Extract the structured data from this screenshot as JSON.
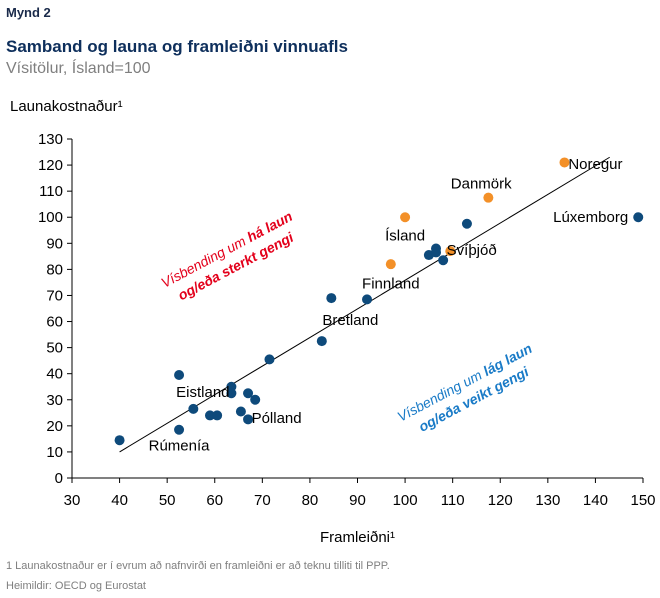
{
  "figure_label": "Mynd 2",
  "title": "Samband og launa og framleiðni vinnuafls",
  "subtitle": "Vísitölur, Ísland=100",
  "footnote": "1 Launakostnaður er í evrum að nafnvirði en framleiðni er að teknu tilliti til PPP.",
  "source": "Heimildir: OECD og Eurostat",
  "colors": {
    "navy": "#0e4a7b",
    "orange": "#f39028",
    "red": "#e3001b",
    "blue": "#1a7bc7"
  },
  "chart_data": {
    "type": "scatter",
    "xlabel": "Framleiðni¹",
    "ylabel": "Launakostnaður¹",
    "xlim": [
      30,
      150
    ],
    "ylim": [
      0,
      130
    ],
    "xticks": [
      30,
      40,
      50,
      60,
      70,
      80,
      90,
      100,
      110,
      120,
      130,
      140,
      150
    ],
    "yticks": [
      0,
      10,
      20,
      30,
      40,
      50,
      60,
      70,
      80,
      90,
      100,
      110,
      120,
      130
    ],
    "grid": false,
    "points": [
      {
        "x": 40,
        "y": 14.5,
        "color": "navy"
      },
      {
        "x": 52.5,
        "y": 18.5,
        "color": "navy"
      },
      {
        "x": 55.5,
        "y": 26.5,
        "color": "navy"
      },
      {
        "x": 52.5,
        "y": 39.5,
        "color": "navy"
      },
      {
        "x": 59,
        "y": 24,
        "color": "navy"
      },
      {
        "x": 60.5,
        "y": 24,
        "color": "navy"
      },
      {
        "x": 63.5,
        "y": 32.5,
        "color": "navy"
      },
      {
        "x": 63.5,
        "y": 35,
        "color": "navy"
      },
      {
        "x": 65.5,
        "y": 25.5,
        "color": "navy"
      },
      {
        "x": 67,
        "y": 32.5,
        "color": "navy"
      },
      {
        "x": 67,
        "y": 22.5,
        "color": "navy"
      },
      {
        "x": 68.5,
        "y": 30,
        "color": "navy"
      },
      {
        "x": 71.5,
        "y": 45.5,
        "color": "navy"
      },
      {
        "x": 82.5,
        "y": 52.5,
        "color": "navy"
      },
      {
        "x": 84.5,
        "y": 69,
        "color": "navy"
      },
      {
        "x": 92,
        "y": 68.5,
        "color": "navy"
      },
      {
        "x": 105,
        "y": 85.5,
        "color": "navy"
      },
      {
        "x": 106.5,
        "y": 88,
        "color": "navy"
      },
      {
        "x": 106.5,
        "y": 86.5,
        "color": "navy"
      },
      {
        "x": 108,
        "y": 83.5,
        "color": "navy"
      },
      {
        "x": 113,
        "y": 97.5,
        "color": "navy"
      },
      {
        "x": 149,
        "y": 100,
        "color": "navy"
      },
      {
        "x": 100,
        "y": 100,
        "color": "orange"
      },
      {
        "x": 97,
        "y": 82,
        "color": "orange"
      },
      {
        "x": 109.5,
        "y": 87,
        "color": "orange"
      },
      {
        "x": 117.5,
        "y": 107.5,
        "color": "orange"
      },
      {
        "x": 133.5,
        "y": 121,
        "color": "orange"
      }
    ],
    "trendline": [
      [
        40,
        10
      ],
      [
        143,
        123
      ]
    ],
    "labels": [
      {
        "text": "Noregur",
        "x": 140,
        "y": 120.5
      },
      {
        "text": "Danmörk",
        "x": 116,
        "y": 113
      },
      {
        "text": "Lúxemborg",
        "x": 139,
        "y": 100
      },
      {
        "text": "Ísland",
        "x": 100,
        "y": 93
      },
      {
        "text": "Svíþjóð",
        "x": 114,
        "y": 87.5
      },
      {
        "text": "Finnland",
        "x": 97,
        "y": 74.5
      },
      {
        "text": "Bretland",
        "x": 88.5,
        "y": 60.5
      },
      {
        "text": "Eistland",
        "x": 57.5,
        "y": 33
      },
      {
        "text": "Pólland",
        "x": 73,
        "y": 23
      },
      {
        "text": "Rúmenía",
        "x": 52.5,
        "y": 12.5
      }
    ],
    "annotations": [
      {
        "line1_plain": "Vísbending um ",
        "line1_bold": "há laun",
        "line2_bold": "og/eða sterkt gengi",
        "color": "red",
        "x": 63,
        "y": 86,
        "rotation": -28
      },
      {
        "line1_plain": "Vísbending um ",
        "line1_bold": "lág laun",
        "line2_bold": "og/eða veikt gengi",
        "color": "blue",
        "x": 113,
        "y": 35,
        "rotation": -28
      }
    ]
  }
}
